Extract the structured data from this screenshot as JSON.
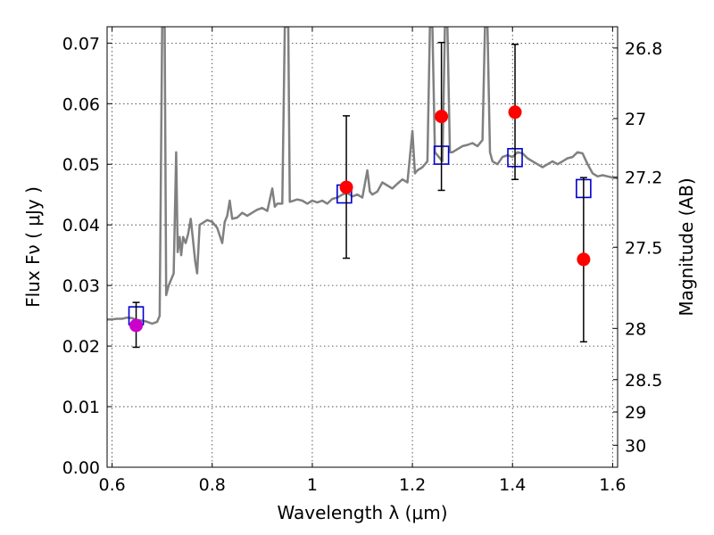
{
  "chart_data": {
    "type": "scatter",
    "xlabel": "Wavelength  λ (μm)",
    "ylabel": "Flux  Fν  ( μJy )",
    "ylabel_right": "Magnitude (AB)",
    "xlim": [
      0.59,
      1.61
    ],
    "ylim": [
      0.0,
      0.0727
    ],
    "grid": true,
    "x_ticks": [
      {
        "value": 0.6,
        "label": "0.6"
      },
      {
        "value": 0.8,
        "label": "0.8"
      },
      {
        "value": 1.0,
        "label": "1"
      },
      {
        "value": 1.2,
        "label": "1.2"
      },
      {
        "value": 1.4,
        "label": "1.4"
      },
      {
        "value": 1.6,
        "label": "1.6"
      }
    ],
    "y_ticks": [
      {
        "value": 0.0,
        "label": "0.00"
      },
      {
        "value": 0.01,
        "label": "0.01"
      },
      {
        "value": 0.02,
        "label": "0.02"
      },
      {
        "value": 0.03,
        "label": "0.03"
      },
      {
        "value": 0.04,
        "label": "0.04"
      },
      {
        "value": 0.05,
        "label": "0.05"
      },
      {
        "value": 0.06,
        "label": "0.06"
      },
      {
        "value": 0.07,
        "label": "0.07"
      }
    ],
    "magnitude_ticks": [
      {
        "mag": 26.8,
        "label": "26.8"
      },
      {
        "mag": 27.0,
        "label": "27"
      },
      {
        "mag": 27.2,
        "label": "27.2"
      },
      {
        "mag": 27.5,
        "label": "27.5"
      },
      {
        "mag": 28.0,
        "label": "28"
      },
      {
        "mag": 28.5,
        "label": "28.5"
      },
      {
        "mag": 29.0,
        "label": "29"
      },
      {
        "mag": 30.0,
        "label": "30"
      }
    ],
    "series": [
      {
        "kind": "model_spectrum",
        "color": "#808080",
        "points": [
          [
            0.59,
            0.0244
          ],
          [
            0.6,
            0.0244
          ],
          [
            0.61,
            0.0245
          ],
          [
            0.62,
            0.0245
          ],
          [
            0.63,
            0.0247
          ],
          [
            0.64,
            0.0246
          ],
          [
            0.65,
            0.0243
          ],
          [
            0.66,
            0.0242
          ],
          [
            0.67,
            0.024
          ],
          [
            0.68,
            0.0237
          ],
          [
            0.69,
            0.024
          ],
          [
            0.695,
            0.025
          ],
          [
            0.7,
            0.0727
          ],
          [
            0.705,
            0.0727
          ],
          [
            0.708,
            0.0284
          ],
          [
            0.713,
            0.03
          ],
          [
            0.718,
            0.031
          ],
          [
            0.723,
            0.032
          ],
          [
            0.728,
            0.052
          ],
          [
            0.731,
            0.0355
          ],
          [
            0.735,
            0.038
          ],
          [
            0.738,
            0.035
          ],
          [
            0.742,
            0.038
          ],
          [
            0.747,
            0.037
          ],
          [
            0.752,
            0.0385
          ],
          [
            0.757,
            0.041
          ],
          [
            0.761,
            0.038
          ],
          [
            0.766,
            0.034
          ],
          [
            0.77,
            0.032
          ],
          [
            0.775,
            0.04
          ],
          [
            0.79,
            0.0408
          ],
          [
            0.8,
            0.0405
          ],
          [
            0.81,
            0.0395
          ],
          [
            0.82,
            0.037
          ],
          [
            0.825,
            0.0405
          ],
          [
            0.83,
            0.0415
          ],
          [
            0.835,
            0.044
          ],
          [
            0.84,
            0.041
          ],
          [
            0.85,
            0.0412
          ],
          [
            0.86,
            0.042
          ],
          [
            0.87,
            0.0415
          ],
          [
            0.88,
            0.042
          ],
          [
            0.89,
            0.0425
          ],
          [
            0.9,
            0.0428
          ],
          [
            0.91,
            0.0423
          ],
          [
            0.92,
            0.046
          ],
          [
            0.925,
            0.043
          ],
          [
            0.93,
            0.0435
          ],
          [
            0.94,
            0.0435
          ],
          [
            0.945,
            0.0727
          ],
          [
            0.952,
            0.0727
          ],
          [
            0.955,
            0.0438
          ],
          [
            0.97,
            0.0442
          ],
          [
            0.98,
            0.044
          ],
          [
            0.99,
            0.0435
          ],
          [
            1.0,
            0.044
          ],
          [
            1.01,
            0.0437
          ],
          [
            1.02,
            0.044
          ],
          [
            1.03,
            0.0435
          ],
          [
            1.04,
            0.0443
          ],
          [
            1.05,
            0.0445
          ],
          [
            1.06,
            0.045
          ],
          [
            1.07,
            0.0453
          ],
          [
            1.08,
            0.0447
          ],
          [
            1.09,
            0.045
          ],
          [
            1.1,
            0.0445
          ],
          [
            1.11,
            0.049
          ],
          [
            1.115,
            0.0455
          ],
          [
            1.12,
            0.045
          ],
          [
            1.13,
            0.0455
          ],
          [
            1.14,
            0.047
          ],
          [
            1.15,
            0.0465
          ],
          [
            1.16,
            0.046
          ],
          [
            1.17,
            0.0468
          ],
          [
            1.18,
            0.0475
          ],
          [
            1.19,
            0.047
          ],
          [
            1.2,
            0.0555
          ],
          [
            1.205,
            0.0485
          ],
          [
            1.21,
            0.049
          ],
          [
            1.22,
            0.0495
          ],
          [
            1.23,
            0.0505
          ],
          [
            1.235,
            0.0727
          ],
          [
            1.24,
            0.0727
          ],
          [
            1.245,
            0.052
          ],
          [
            1.25,
            0.0515
          ],
          [
            1.26,
            0.0505
          ],
          [
            1.265,
            0.0727
          ],
          [
            1.27,
            0.0727
          ],
          [
            1.275,
            0.052
          ],
          [
            1.28,
            0.052
          ],
          [
            1.29,
            0.0525
          ],
          [
            1.3,
            0.053
          ],
          [
            1.31,
            0.0532
          ],
          [
            1.32,
            0.0535
          ],
          [
            1.33,
            0.053
          ],
          [
            1.34,
            0.054
          ],
          [
            1.345,
            0.0727
          ],
          [
            1.35,
            0.0727
          ],
          [
            1.355,
            0.052
          ],
          [
            1.36,
            0.0505
          ],
          [
            1.37,
            0.05
          ],
          [
            1.38,
            0.0512
          ],
          [
            1.39,
            0.0515
          ],
          [
            1.4,
            0.0512
          ],
          [
            1.41,
            0.052
          ],
          [
            1.42,
            0.0518
          ],
          [
            1.43,
            0.051
          ],
          [
            1.44,
            0.0505
          ],
          [
            1.45,
            0.05
          ],
          [
            1.46,
            0.0495
          ],
          [
            1.47,
            0.05
          ],
          [
            1.48,
            0.0505
          ],
          [
            1.49,
            0.05
          ],
          [
            1.5,
            0.0505
          ],
          [
            1.51,
            0.051
          ],
          [
            1.52,
            0.0512
          ],
          [
            1.53,
            0.052
          ],
          [
            1.54,
            0.0518
          ],
          [
            1.55,
            0.05
          ],
          [
            1.56,
            0.0485
          ],
          [
            1.57,
            0.048
          ],
          [
            1.58,
            0.0482
          ],
          [
            1.59,
            0.048
          ],
          [
            1.6,
            0.0478
          ],
          [
            1.61,
            0.0477
          ]
        ]
      },
      {
        "kind": "model_photometry",
        "marker": "open_square",
        "color": "#0000cc",
        "points": [
          {
            "x": 0.648,
            "y": 0.025
          },
          {
            "x": 1.064,
            "y": 0.0451
          },
          {
            "x": 1.258,
            "y": 0.0515
          },
          {
            "x": 1.405,
            "y": 0.0511
          },
          {
            "x": 1.542,
            "y": 0.046
          }
        ]
      },
      {
        "kind": "observed_photometry",
        "marker": "filled_circle",
        "color": "#ff0000",
        "points": [
          {
            "x": 0.648,
            "y": 0.0234,
            "yerr": [
              0.0198,
              0.0272
            ],
            "color": "#cc00cc"
          },
          {
            "x": 1.068,
            "y": 0.0462,
            "yerr": [
              0.0345,
              0.058
            ]
          },
          {
            "x": 1.258,
            "y": 0.0579,
            "yerr": [
              0.0457,
              0.0701
            ]
          },
          {
            "x": 1.405,
            "y": 0.0586,
            "yerr": [
              0.0475,
              0.0698
            ]
          },
          {
            "x": 1.542,
            "y": 0.0343,
            "yerr": [
              0.0207,
              0.0478
            ]
          }
        ]
      }
    ]
  }
}
